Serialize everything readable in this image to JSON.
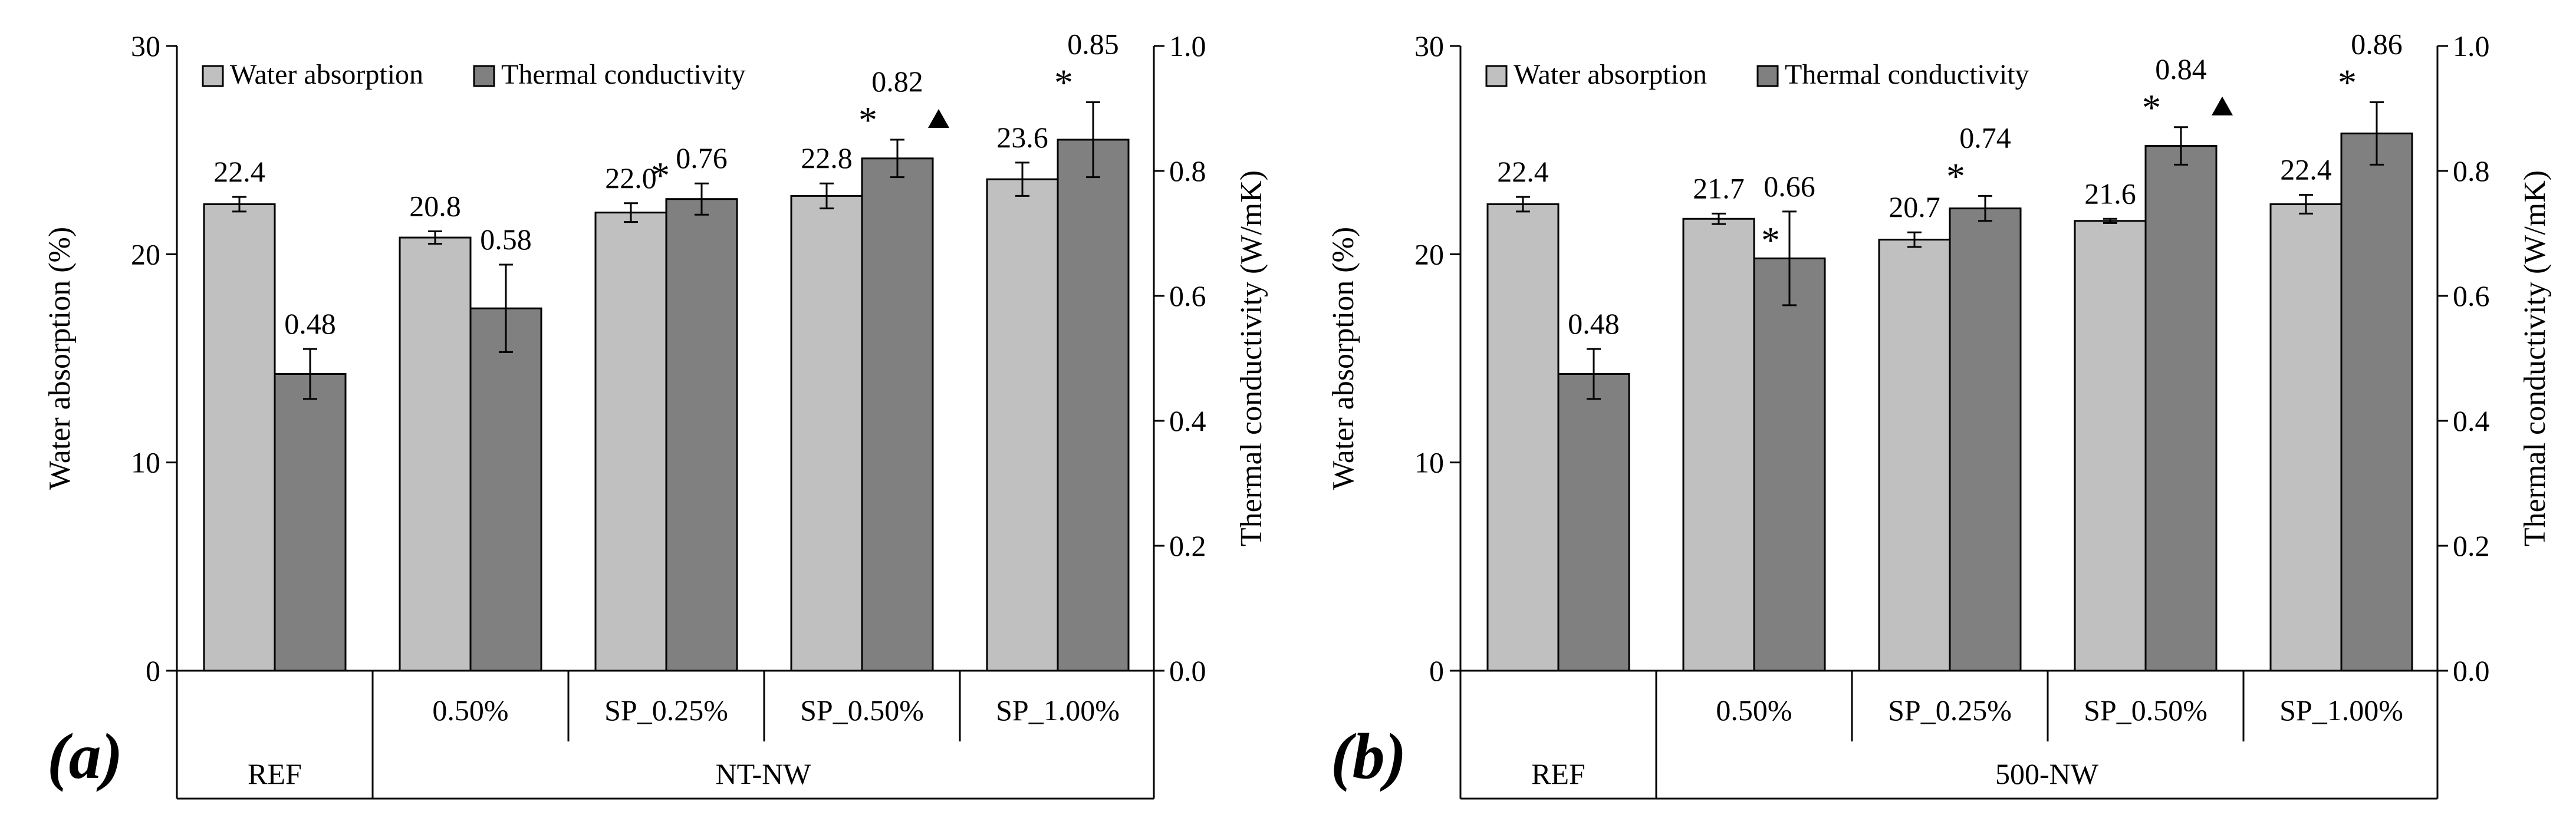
{
  "chart_data": [
    {
      "type": "bar",
      "panel_label": "(a)",
      "group_label": "NT-NW",
      "categories": [
        "REF",
        "0.50%",
        "SP_0.25%",
        "SP_0.50%",
        "SP_1.00%"
      ],
      "ylabel": "Water absorption (%)",
      "y2label": "Thermal conductivity (W/mK)",
      "ylim": [
        0,
        30
      ],
      "y2lim": [
        0,
        1.0
      ],
      "yticks": [
        "0",
        "10",
        "20",
        "30"
      ],
      "y2ticks": [
        "0.0",
        "0.2",
        "0.4",
        "0.6",
        "0.8",
        "1.0"
      ],
      "legend_position": "top-left",
      "series": [
        {
          "name": "Water absorption",
          "axis": "left",
          "color": "#c0c0c0",
          "values": [
            22.4,
            20.8,
            22.0,
            22.8,
            23.6
          ],
          "errors": [
            0.35,
            0.3,
            0.45,
            0.6,
            0.8
          ],
          "labels": [
            "22.4",
            "20.8",
            "22.0",
            "22.8",
            "23.6"
          ],
          "markers": [
            "",
            "",
            "",
            "",
            ""
          ]
        },
        {
          "name": "Thermal conductivity",
          "axis": "right",
          "color": "#808080",
          "values": [
            0.475,
            0.58,
            0.755,
            0.82,
            0.85
          ],
          "errors": [
            0.04,
            0.07,
            0.025,
            0.03,
            0.06
          ],
          "labels": [
            "0.48",
            "0.58",
            "0.76",
            "0.82",
            "0.85"
          ],
          "markers": [
            "",
            "",
            "*",
            "*",
            "*"
          ],
          "triangles": [
            false,
            false,
            false,
            true,
            false
          ]
        }
      ]
    },
    {
      "type": "bar",
      "panel_label": "(b)",
      "group_label": "500-NW",
      "categories": [
        "REF",
        "0.50%",
        "SP_0.25%",
        "SP_0.50%",
        "SP_1.00%"
      ],
      "ylabel": "Water absorption (%)",
      "y2label": "Thermal conductivity (W/mK)",
      "ylim": [
        0,
        30
      ],
      "y2lim": [
        0,
        1.0
      ],
      "yticks": [
        "0",
        "10",
        "20",
        "30"
      ],
      "y2ticks": [
        "0.0",
        "0.2",
        "0.4",
        "0.6",
        "0.8",
        "1.0"
      ],
      "legend_position": "top-left",
      "series": [
        {
          "name": "Water absorption",
          "axis": "left",
          "color": "#c0c0c0",
          "values": [
            22.4,
            21.7,
            20.7,
            21.6,
            22.4
          ],
          "errors": [
            0.35,
            0.25,
            0.35,
            0.1,
            0.45
          ],
          "labels": [
            "22.4",
            "21.7",
            "20.7",
            "21.6",
            "22.4"
          ],
          "markers": [
            "",
            "",
            "",
            "",
            ""
          ]
        },
        {
          "name": "Thermal conductivity",
          "axis": "right",
          "color": "#808080",
          "values": [
            0.475,
            0.66,
            0.74,
            0.84,
            0.86
          ],
          "errors": [
            0.04,
            0.075,
            0.02,
            0.03,
            0.05
          ],
          "labels": [
            "0.48",
            "0.66",
            "0.74",
            "0.84",
            "0.86"
          ],
          "markers": [
            "",
            "*",
            "*",
            "*",
            "*"
          ],
          "triangles": [
            false,
            false,
            false,
            true,
            false
          ]
        }
      ]
    }
  ]
}
